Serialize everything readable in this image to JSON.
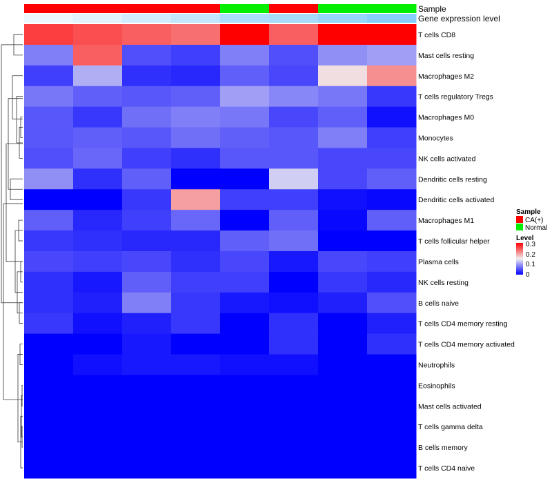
{
  "chart_data": {
    "type": "heatmap",
    "annotation_labels": {
      "sample": "Sample",
      "gene_expression": "Gene expression level"
    },
    "rows": [
      "T cells CD8",
      "Mast cells resting",
      "Macrophages M2",
      "T cells regulatory  Tregs",
      "Macrophages M0",
      "Monocytes",
      "NK cells activated",
      "Dendritic cells resting",
      "Dendritic cells activated",
      "Macrophages M1",
      "T cells follicular helper",
      "Plasma cells",
      "NK cells resting",
      "B cells naive",
      "T cells CD4 memory resting",
      "T cells CD4 memory activated",
      "Neutrophils",
      "Eosinophils",
      "Mast cells activated",
      "T cells gamma delta",
      "B cells memory",
      "T cells CD4 naive"
    ],
    "sample_groups": [
      "CA(+)",
      "CA(+)",
      "CA(+)",
      "CA(+)",
      "Normal",
      "CA(+)",
      "Normal",
      "Normal"
    ],
    "gene_expression_level": [
      0.08,
      0.1,
      0.13,
      0.16,
      0.2,
      0.21,
      0.24,
      0.27
    ],
    "values": [
      [
        0.26,
        0.25,
        0.24,
        0.23,
        0.3,
        0.24,
        0.3,
        0.3
      ],
      [
        0.08,
        0.24,
        0.05,
        0.04,
        0.08,
        0.05,
        0.09,
        0.1
      ],
      [
        0.04,
        0.11,
        0.03,
        0.025,
        0.06,
        0.045,
        0.16,
        0.21
      ],
      [
        0.075,
        0.06,
        0.055,
        0.06,
        0.1,
        0.085,
        0.075,
        0.035
      ],
      [
        0.055,
        0.035,
        0.07,
        0.08,
        0.075,
        0.045,
        0.06,
        0.01
      ],
      [
        0.055,
        0.06,
        0.055,
        0.07,
        0.06,
        0.055,
        0.08,
        0.04
      ],
      [
        0.05,
        0.065,
        0.04,
        0.03,
        0.055,
        0.055,
        0.045,
        0.045
      ],
      [
        0.09,
        0.03,
        0.06,
        0.0,
        0.0,
        0.13,
        0.045,
        0.06
      ],
      [
        0.0,
        0.0,
        0.035,
        0.2,
        0.04,
        0.04,
        0.01,
        0.005
      ],
      [
        0.06,
        0.025,
        0.04,
        0.065,
        0.0,
        0.06,
        0.005,
        0.06
      ],
      [
        0.035,
        0.03,
        0.025,
        0.025,
        0.06,
        0.07,
        0.0,
        0.0
      ],
      [
        0.045,
        0.04,
        0.045,
        0.03,
        0.045,
        0.015,
        0.045,
        0.04
      ],
      [
        0.03,
        0.015,
        0.06,
        0.04,
        0.04,
        0.0,
        0.035,
        0.025
      ],
      [
        0.03,
        0.02,
        0.08,
        0.035,
        0.015,
        0.01,
        0.02,
        0.05
      ],
      [
        0.035,
        0.01,
        0.02,
        0.035,
        0.0,
        0.03,
        0.0,
        0.02
      ],
      [
        0.0,
        0.0,
        0.015,
        0.0,
        0.0,
        0.03,
        0.0,
        0.03
      ],
      [
        0.0,
        0.01,
        0.015,
        0.015,
        0.01,
        0.01,
        0.0,
        0.0
      ],
      [
        0.0,
        0.0,
        0.0,
        0.0,
        0.0,
        0.0,
        0.0,
        0.0
      ],
      [
        0.0,
        0.0,
        0.0,
        0.0,
        0.0,
        0.0,
        0.0,
        0.0
      ],
      [
        0.0,
        0.0,
        0.0,
        0.0,
        0.0,
        0.0,
        0.0,
        0.0
      ],
      [
        0.0,
        0.0,
        0.0,
        0.0,
        0.0,
        0.0,
        0.0,
        0.0
      ],
      [
        0.0,
        0.0,
        0.0,
        0.0,
        0.0,
        0.0,
        0.0,
        0.0
      ]
    ],
    "color_scale": {
      "low": "#0000ff",
      "mid": "#f0eef0",
      "high": "#ff0000",
      "min": 0,
      "max": 0.3
    },
    "legend": {
      "sample_title": "Sample",
      "sample_items": [
        {
          "label": "CA(+)",
          "color": "#ff0000"
        },
        {
          "label": "Normal",
          "color": "#00ee00"
        }
      ],
      "level_title": "Level",
      "level_ticks": [
        "0.3",
        "0.2",
        "0.1",
        "0"
      ],
      "placement": "right"
    },
    "dendrogram": "rows",
    "grid": false
  }
}
